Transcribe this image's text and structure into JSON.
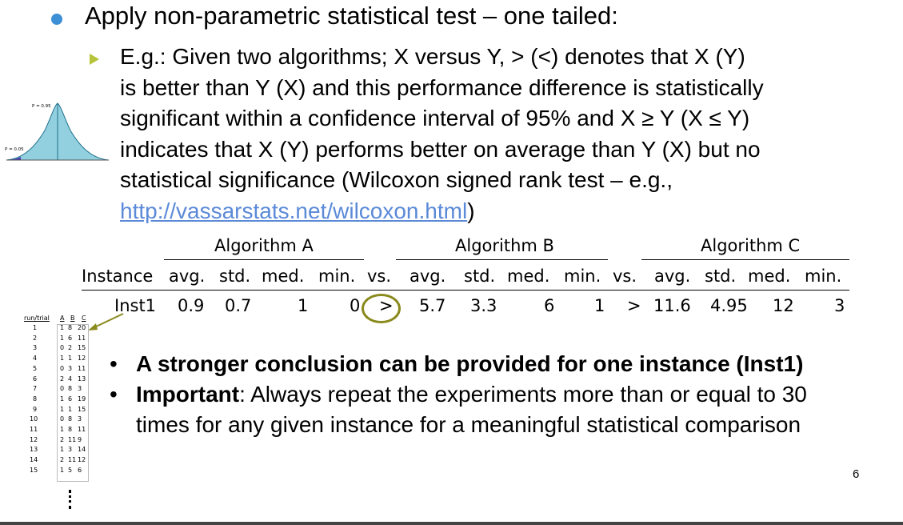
{
  "heading": "Apply non-parametric statistical test – one tailed:",
  "sub_bullet": {
    "lines": [
      "E.g.: Given two algorithms; X versus Y, > (<) denotes that X (Y)",
      "is better than Y (X) and this performance difference is statistically",
      "significant within a confidence interval of 95% and X ≥ Y (X ≤ Y)",
      "indicates that X (Y) performs better on average than Y (X) but no",
      "statistical significance (Wilcoxon signed rank test – e.g.,"
    ],
    "link": "http://vassarstats.net/wilcoxon.html",
    "link_suffix": ")"
  },
  "bell_curve": {
    "label_top": "P = 0.95",
    "label_left": "P = 0.05"
  },
  "table": {
    "groups": [
      "Algorithm A",
      "Algorithm B",
      "Algorithm C"
    ],
    "headers": [
      "Instance",
      "avg.",
      "std.",
      "med.",
      "min.",
      "vs.",
      "avg.",
      "std.",
      "med.",
      "min.",
      "vs.",
      "avg.",
      "std.",
      "med.",
      "min."
    ],
    "row": [
      "Inst1",
      "0.9",
      "0.7",
      "1",
      "0",
      ">",
      "5.7",
      "3.3",
      "6",
      "1",
      ">",
      "11.6",
      "4.95",
      "12",
      "3"
    ]
  },
  "mini_table": {
    "headers": [
      "run/trial",
      "A",
      "B",
      "C"
    ],
    "rows": [
      [
        "1",
        "1",
        "8",
        "20"
      ],
      [
        "2",
        "1",
        "6",
        "11"
      ],
      [
        "3",
        "0",
        "2",
        "15"
      ],
      [
        "4",
        "1",
        "1",
        "12"
      ],
      [
        "5",
        "0",
        "3",
        "11"
      ],
      [
        "6",
        "2",
        "4",
        "13"
      ],
      [
        "7",
        "0",
        "8",
        "3"
      ],
      [
        "8",
        "1",
        "6",
        "19"
      ],
      [
        "9",
        "1",
        "1",
        "15"
      ],
      [
        "10",
        "0",
        "8",
        "3"
      ],
      [
        "11",
        "1",
        "8",
        "11"
      ],
      [
        "12",
        "2",
        "11",
        "9"
      ],
      [
        "13",
        "1",
        "3",
        "14"
      ],
      [
        "14",
        "2",
        "11",
        "12"
      ],
      [
        "15",
        "1",
        "5",
        "6"
      ]
    ]
  },
  "conclusions": {
    "b1": "A stronger conclusion can be provided for one instance (Inst1)",
    "b2_bold": "Important",
    "b2_rest": ": Always repeat the experiments more than or equal to 30",
    "b2_line2": "times for any given instance for a meaningful statistical comparison"
  },
  "page_number": "6",
  "colors": {
    "bullet": "#3d8fd6",
    "arrow": "#b6c43b",
    "link": "#5b8ad8",
    "circle": "#8a8a1e",
    "curve_fill": "#92d0e0",
    "tail_fill": "#4a3ab0"
  }
}
